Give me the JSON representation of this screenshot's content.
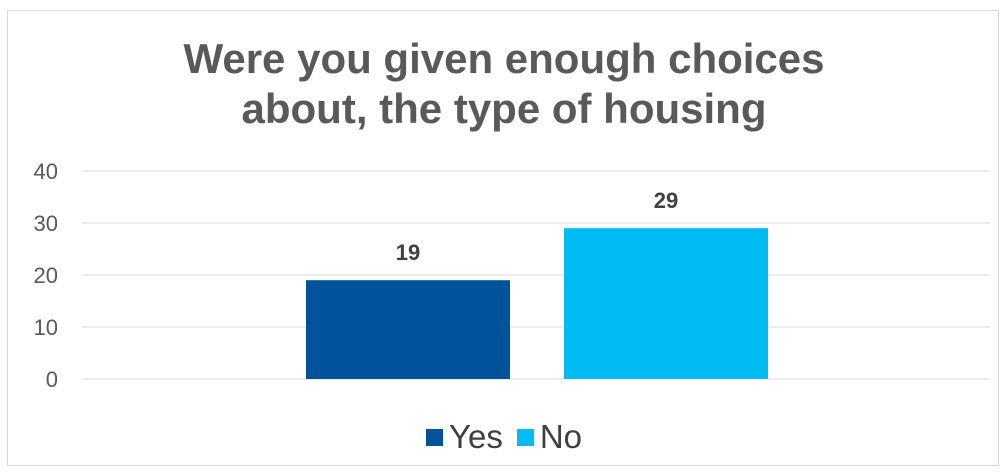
{
  "chart_data": {
    "type": "bar",
    "title_lines": [
      "Were you given enough choices",
      "about, the type of housing"
    ],
    "xlabel": "",
    "ylabel": "",
    "ylim": [
      0,
      40
    ],
    "yticks": [
      0,
      10,
      20,
      30,
      40
    ],
    "grid": true,
    "legend_position": "bottom",
    "series": [
      {
        "name": "Yes",
        "value": 19,
        "color": "#00529b"
      },
      {
        "name": "No",
        "value": 29,
        "color": "#00bcf2"
      }
    ]
  }
}
